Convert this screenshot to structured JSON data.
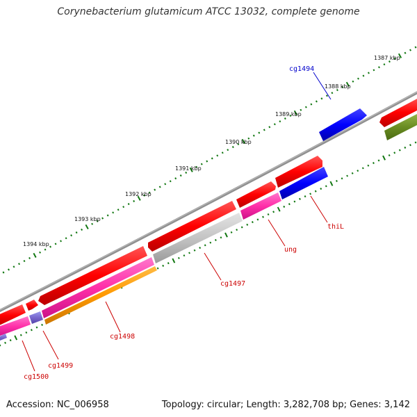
{
  "title": "Corynebacterium glutamicum ATCC 13032, complete genome",
  "footer": {
    "accession": "Accession: NC_006958",
    "topology": "Topology: circular; Length: 3,282,708 bp; Genes: 3,142"
  },
  "ruler": {
    "labels": [
      "1387 kbp",
      "1388 kbp",
      "1389 kbp",
      "1390 kbp",
      "1391 kbp",
      "1392 kbp",
      "1393 kbp",
      "1394 kbp"
    ]
  },
  "genes": [
    {
      "name": "cg1494",
      "color": "#0000cc"
    },
    {
      "name": "thiL",
      "color": "#cc0000"
    },
    {
      "name": "ung",
      "color": "#cc0000"
    },
    {
      "name": "cg1497",
      "color": "#cc0000"
    },
    {
      "name": "cg1498",
      "color": "#cc0000"
    },
    {
      "name": "cg1499",
      "color": "#cc0000"
    },
    {
      "name": "cg1500",
      "color": "#cc0000"
    }
  ],
  "colors": {
    "backbone": "#808080",
    "cds": "#ff0000",
    "blue_feature": "#0000ff",
    "pink_feature": "#ff33aa",
    "grey_feature": "#c0c0c0",
    "orange_feature": "#ff9900",
    "olive_feature": "#6b8e23",
    "purple_feature": "#7766cc",
    "tick": "#117711"
  }
}
